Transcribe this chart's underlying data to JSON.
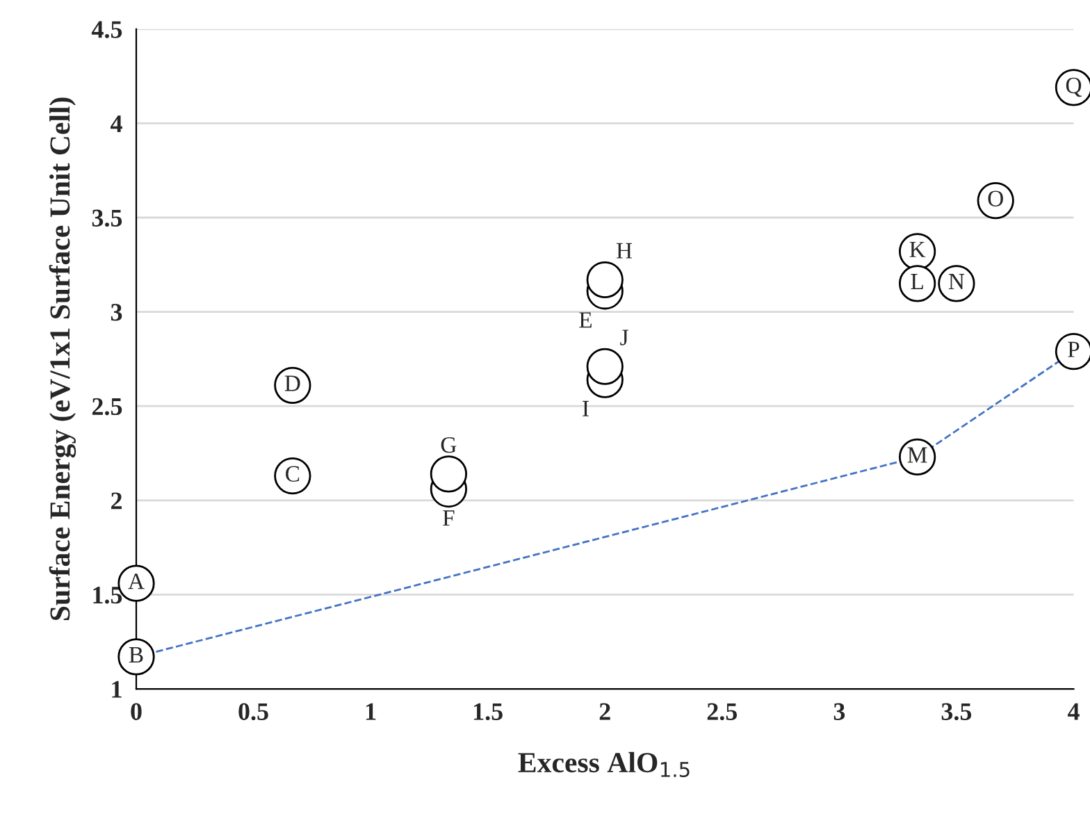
{
  "chart_data": {
    "type": "scatter",
    "xlabel": "Excess AlO$_{1.5}$",
    "ylabel": "Surface Energy (eV/1x1 Surface Unit Cell)",
    "xlim": [
      0,
      4
    ],
    "xticks": [
      0,
      0.5,
      1,
      1.5,
      2,
      2.5,
      3,
      3.5,
      4
    ],
    "ylim": [
      1,
      4.5
    ],
    "yticks": [
      1,
      1.5,
      2,
      2.5,
      3,
      3.5,
      4,
      4.5
    ],
    "grid": "y",
    "legend": false,
    "series": [
      {
        "color": "#000000",
        "marker": "circle",
        "x": [
          0,
          0,
          0.667,
          0.667,
          2,
          1.333,
          1.333,
          2,
          2,
          2,
          3.333,
          3.333,
          3.333,
          3.5,
          3.667,
          4,
          4
        ],
        "values": [
          1.56,
          1.17,
          2.13,
          2.61,
          3.11,
          2.06,
          2.14,
          3.17,
          2.64,
          2.71,
          3.32,
          3.15,
          2.23,
          3.15,
          3.59,
          2.79,
          4.19
        ],
        "value_labels": [
          "A",
          "B",
          "C",
          "D",
          "E",
          "F",
          "G",
          "H",
          "I",
          "J",
          "K",
          "L",
          "M",
          "N",
          "O",
          "P",
          "Q"
        ]
      },
      {
        "type": "line",
        "color": "#4472c4",
        "marker": "none",
        "line_style": "dashed",
        "x": [
          0,
          3.333,
          4
        ],
        "values": [
          1.17,
          2.23,
          2.79
        ]
      }
    ]
  }
}
